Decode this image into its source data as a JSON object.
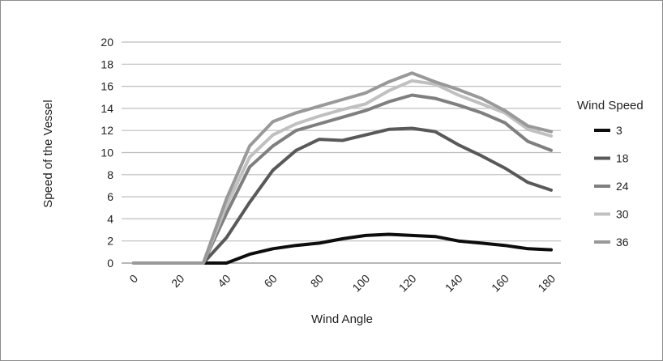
{
  "chart_data": {
    "type": "line",
    "xlabel": "Wind Angle",
    "ylabel": "Speed of the Vessel",
    "x": [
      0,
      10,
      20,
      30,
      40,
      50,
      60,
      70,
      80,
      90,
      100,
      110,
      120,
      130,
      140,
      150,
      160,
      170,
      180
    ],
    "xticks": [
      0,
      20,
      40,
      60,
      80,
      100,
      120,
      140,
      160,
      180
    ],
    "yticks": [
      0,
      2,
      4,
      6,
      8,
      10,
      12,
      14,
      16,
      18,
      20
    ],
    "ylim": [
      0,
      20
    ],
    "grid": true,
    "legend": {
      "title": "Wind Speed",
      "position": "right"
    },
    "series": [
      {
        "name": "3",
        "color": "#0d0d0d",
        "values": [
          0,
          0,
          0,
          0,
          0,
          0.8,
          1.3,
          1.6,
          1.8,
          2.2,
          2.5,
          2.6,
          2.5,
          2.4,
          2.0,
          1.8,
          1.6,
          1.3,
          1.2
        ]
      },
      {
        "name": "18",
        "color": "#595959",
        "values": [
          0,
          0,
          0,
          0,
          2.3,
          5.5,
          8.4,
          10.2,
          11.2,
          11.1,
          11.6,
          12.1,
          12.2,
          11.9,
          10.7,
          9.7,
          8.6,
          7.3,
          6.6
        ]
      },
      {
        "name": "24",
        "color": "#7f7f7f",
        "values": [
          0,
          0,
          0,
          0,
          4.5,
          8.7,
          10.6,
          12.0,
          12.6,
          13.2,
          13.8,
          14.6,
          15.2,
          14.9,
          14.3,
          13.6,
          12.7,
          11.0,
          10.2
        ]
      },
      {
        "name": "30",
        "color": "#c0c0c0",
        "values": [
          0,
          0,
          0,
          0,
          5.2,
          9.6,
          11.6,
          12.6,
          13.3,
          13.9,
          14.4,
          15.6,
          16.5,
          16.2,
          15.2,
          14.4,
          13.6,
          12.1,
          11.5
        ]
      },
      {
        "name": "36",
        "color": "#999999",
        "values": [
          0,
          0,
          0,
          0,
          5.8,
          10.6,
          12.8,
          13.6,
          14.2,
          14.8,
          15.4,
          16.4,
          17.2,
          16.4,
          15.7,
          14.9,
          13.8,
          12.4,
          11.9
        ]
      }
    ]
  }
}
